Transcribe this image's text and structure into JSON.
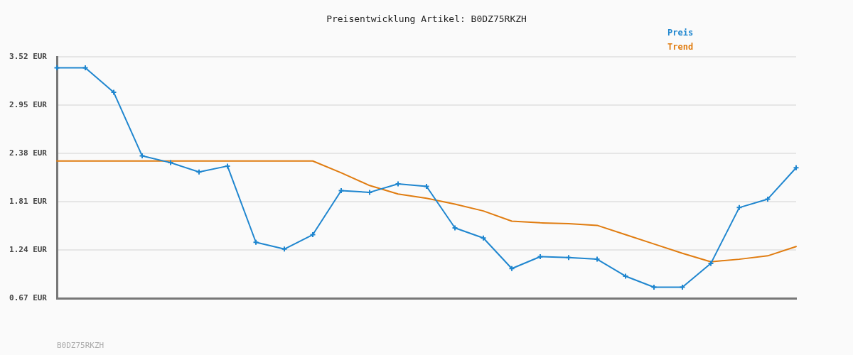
{
  "chart_data": {
    "type": "line",
    "title": "Preisentwicklung Artikel: B0DZ75RKZH",
    "annotations": [
      "B0DZ75RKZH"
    ],
    "categories": [
      null,
      null,
      null,
      null,
      null,
      null,
      null,
      null,
      null,
      null,
      null,
      null,
      null,
      null,
      null,
      null,
      null,
      null,
      null,
      null,
      null,
      null,
      null,
      null,
      null,
      null,
      null
    ],
    "series": [
      {
        "name": "Preis",
        "color": "#1f86cf",
        "values": [
          3.39,
          3.39,
          3.1,
          2.35,
          2.27,
          2.16,
          2.23,
          1.33,
          1.25,
          1.42,
          1.94,
          1.92,
          2.02,
          1.99,
          1.5,
          1.38,
          1.02,
          1.16,
          1.15,
          1.13,
          0.93,
          0.8,
          0.8,
          1.08,
          1.74,
          1.84,
          2.21
        ]
      },
      {
        "name": "Trend",
        "color": "#e07c10",
        "marker": "none",
        "values": [
          2.29,
          2.29,
          2.29,
          2.29,
          2.29,
          2.29,
          2.29,
          2.29,
          2.29,
          2.29,
          2.15,
          2.0,
          1.9,
          1.85,
          1.78,
          1.7,
          1.58,
          1.56,
          1.55,
          1.53,
          1.42,
          1.31,
          1.2,
          1.1,
          1.13,
          1.17,
          1.28
        ]
      }
    ],
    "ylim": [
      0.67,
      3.52
    ],
    "yticks": [
      {
        "value": 0.67,
        "label": "0.67 EUR"
      },
      {
        "value": 1.24,
        "label": "1.24 EUR"
      },
      {
        "value": 1.81,
        "label": "1.81 EUR"
      },
      {
        "value": 2.38,
        "label": "2.38 EUR"
      },
      {
        "value": 2.95,
        "label": "2.95 EUR"
      },
      {
        "value": 3.52,
        "label": "3.52 EUR"
      }
    ],
    "grid": "y",
    "legend": "top right",
    "tick_labels": "y",
    "marker": "cross",
    "line_style": "solid"
  }
}
